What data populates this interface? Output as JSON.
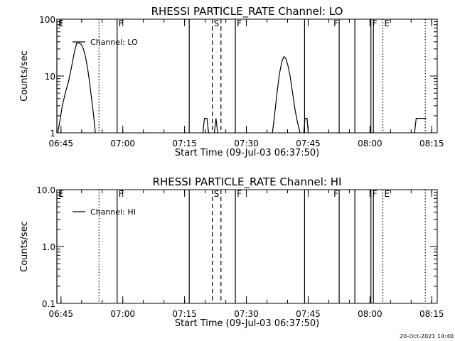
{
  "footer_timestamp": "20-Oct-2021 14:40",
  "chart_data": [
    {
      "type": "line",
      "title": "RHESSI PARTICLE_RATE Channel: LO",
      "xlabel": "Start Time (09-Jul-03 06:37:50)",
      "ylabel": "Counts/sec",
      "yscale": "log",
      "ylim": [
        1,
        100
      ],
      "yticks": [
        1,
        10,
        100
      ],
      "ytick_labels": [
        "1",
        "10",
        "100"
      ],
      "xlim_minutes": [
        6.17,
        98.5
      ],
      "xtick_minutes": [
        7.17,
        22.17,
        37.17,
        52.17,
        67.17,
        82.17,
        97.17
      ],
      "xtick_labels": [
        "06:45",
        "07:00",
        "07:15",
        "07:30",
        "07:45",
        "08:00",
        "08:15"
      ],
      "legend": "Channel: LO",
      "markers": [
        {
          "label": "E",
          "min": 6.17,
          "style": "solid",
          "text_side": "right"
        },
        {
          "label": "",
          "min": 16.4,
          "style": "dotted",
          "text_side": "right"
        },
        {
          "label": "F",
          "min": 20.8,
          "style": "solid",
          "text_side": "right"
        },
        {
          "label": "",
          "min": 38.3,
          "style": "solid",
          "text_side": "right"
        },
        {
          "label": "S",
          "min": 43.9,
          "style": "dashed",
          "text_side": "right"
        },
        {
          "label": "",
          "min": 46.0,
          "style": "dashed",
          "text_side": "right"
        },
        {
          "label": "F",
          "min": 49.5,
          "style": "solid",
          "text_side": "right"
        },
        {
          "label": "",
          "min": 66.3,
          "style": "solid",
          "text_side": "right"
        },
        {
          "label": "F",
          "min": 74.7,
          "style": "solid",
          "text_side": "left"
        },
        {
          "label": "",
          "min": 78.5,
          "style": "solid",
          "text_side": "right"
        },
        {
          "label": "F",
          "min": 82.4,
          "style": "solid",
          "text_side": "right"
        },
        {
          "label": "",
          "min": 83.0,
          "style": "solid",
          "text_side": "right"
        },
        {
          "label": "E",
          "min": 85.3,
          "style": "dotted",
          "text_side": "right"
        },
        {
          "label": "",
          "min": 95.6,
          "style": "dotted",
          "text_side": "right"
        }
      ],
      "series": [
        {
          "name": "Channel: LO",
          "segments": [
            [
              [
                6.4,
                1
              ],
              [
                7.0,
                1.8
              ],
              [
                7.5,
                3
              ],
              [
                8.2,
                5
              ],
              [
                9.0,
                8
              ],
              [
                9.6,
                13
              ],
              [
                10.2,
                22
              ],
              [
                10.6,
                30
              ],
              [
                11.0,
                38
              ],
              [
                11.6,
                38
              ],
              [
                12.1,
                36
              ],
              [
                12.6,
                30
              ],
              [
                13.1,
                22
              ],
              [
                13.6,
                14
              ],
              [
                14.1,
                8
              ],
              [
                14.6,
                4
              ],
              [
                15.1,
                2
              ],
              [
                15.5,
                1
              ]
            ],
            [
              [
                41.6,
                1
              ],
              [
                42.0,
                1.8
              ],
              [
                42.6,
                1.8
              ],
              [
                43.0,
                1
              ]
            ],
            [
              [
                44.4,
                1
              ],
              [
                44.8,
                1.8
              ],
              [
                45.2,
                1
              ]
            ],
            [
              [
                58.5,
                1
              ],
              [
                59.0,
                2
              ],
              [
                59.6,
                5
              ],
              [
                60.2,
                11
              ],
              [
                60.8,
                18
              ],
              [
                61.3,
                22
              ],
              [
                61.8,
                20
              ],
              [
                62.3,
                15
              ],
              [
                62.8,
                10
              ],
              [
                63.4,
                5
              ],
              [
                64.0,
                2.5
              ],
              [
                64.6,
                1.5
              ],
              [
                65.2,
                1
              ]
            ],
            [
              [
                66.1,
                1
              ],
              [
                66.4,
                1.8
              ],
              [
                66.9,
                1.8
              ],
              [
                67.2,
                1
              ]
            ],
            [
              [
                93.0,
                1
              ],
              [
                93.4,
                1.8
              ],
              [
                95.8,
                1.8
              ]
            ]
          ]
        }
      ]
    },
    {
      "type": "line",
      "title": "RHESSI PARTICLE_RATE Channel: HI",
      "xlabel": "Start Time (09-Jul-03 06:37:50)",
      "ylabel": "Counts/sec",
      "yscale": "log",
      "ylim": [
        0.1,
        10
      ],
      "yticks": [
        0.1,
        1,
        10
      ],
      "ytick_labels": [
        "0.1",
        "1.0",
        "10.0"
      ],
      "xlim_minutes": [
        6.17,
        98.5
      ],
      "xtick_minutes": [
        7.17,
        22.17,
        37.17,
        52.17,
        67.17,
        82.17,
        97.17
      ],
      "xtick_labels": [
        "06:45",
        "07:00",
        "07:15",
        "07:30",
        "07:45",
        "08:00",
        "08:15"
      ],
      "legend": "Channel: HI",
      "markers": [
        {
          "label": "E",
          "min": 6.17,
          "style": "solid",
          "text_side": "right"
        },
        {
          "label": "",
          "min": 16.4,
          "style": "dotted",
          "text_side": "right"
        },
        {
          "label": "F",
          "min": 20.8,
          "style": "solid",
          "text_side": "right"
        },
        {
          "label": "",
          "min": 38.3,
          "style": "solid",
          "text_side": "right"
        },
        {
          "label": "S",
          "min": 43.9,
          "style": "dashed",
          "text_side": "right"
        },
        {
          "label": "",
          "min": 46.0,
          "style": "dashed",
          "text_side": "right"
        },
        {
          "label": "F",
          "min": 49.5,
          "style": "solid",
          "text_side": "right"
        },
        {
          "label": "",
          "min": 66.3,
          "style": "solid",
          "text_side": "right"
        },
        {
          "label": "F",
          "min": 74.7,
          "style": "solid",
          "text_side": "left"
        },
        {
          "label": "",
          "min": 78.5,
          "style": "solid",
          "text_side": "right"
        },
        {
          "label": "F",
          "min": 82.4,
          "style": "solid",
          "text_side": "right"
        },
        {
          "label": "",
          "min": 83.0,
          "style": "solid",
          "text_side": "right"
        },
        {
          "label": "E",
          "min": 85.3,
          "style": "dotted",
          "text_side": "right"
        },
        {
          "label": "",
          "min": 95.6,
          "style": "dotted",
          "text_side": "right"
        }
      ],
      "series": [
        {
          "name": "Channel: HI",
          "segments": []
        }
      ]
    }
  ]
}
